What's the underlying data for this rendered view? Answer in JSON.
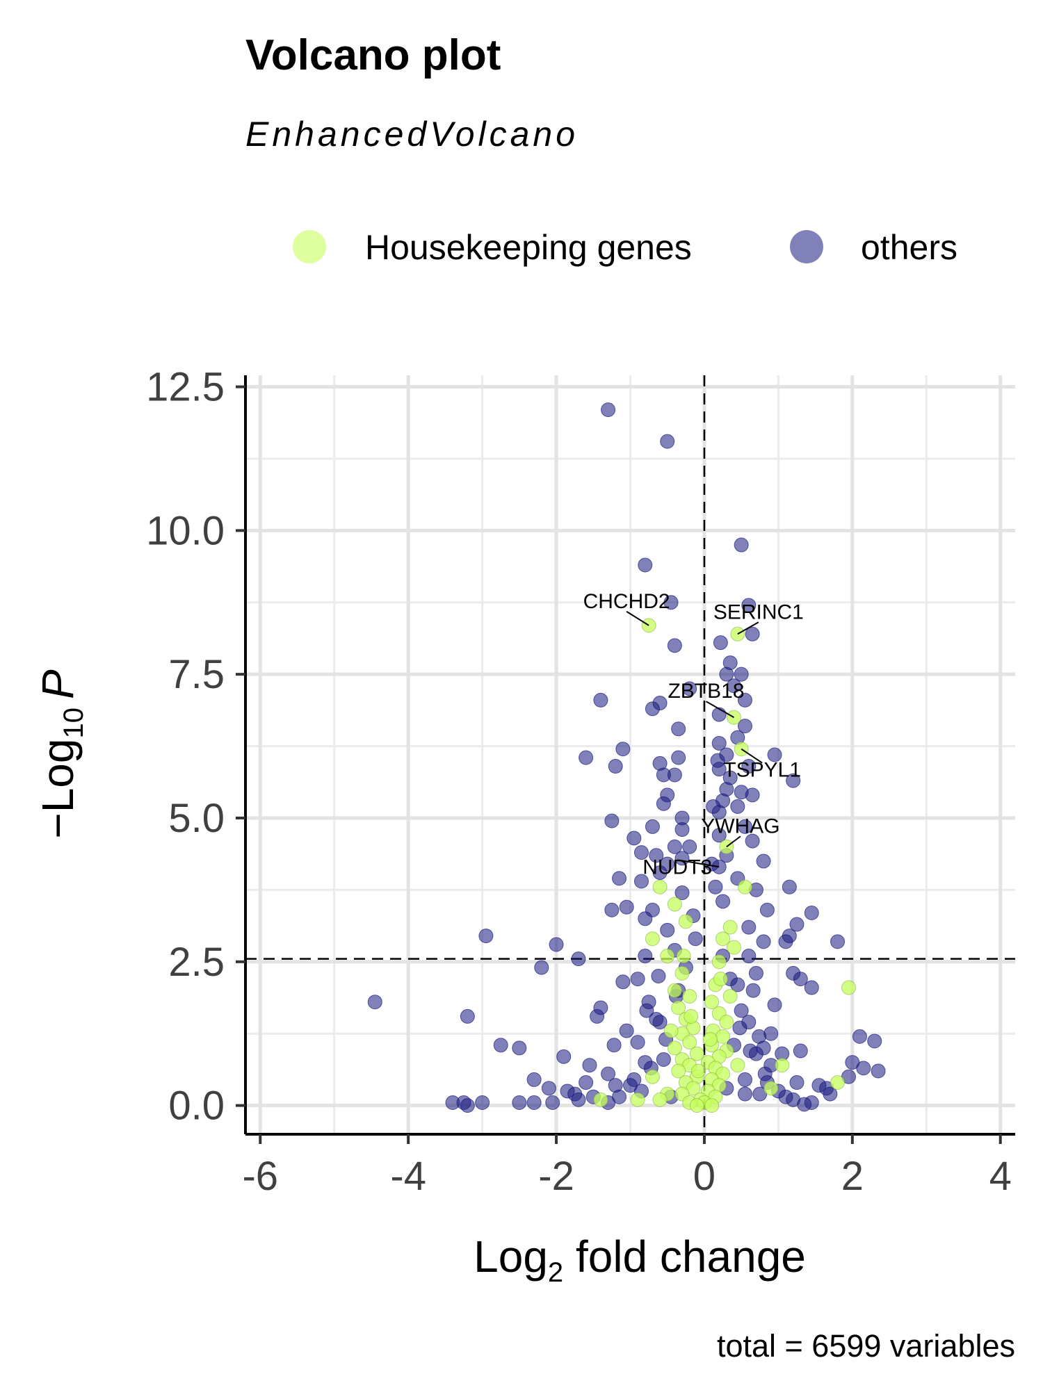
{
  "chart_data": {
    "type": "scatter",
    "title": "Volcano plot",
    "subtitle": "EnhancedVolcano",
    "caption": "total = 6599 variables",
    "xlabel": {
      "base": "Log",
      "sub": "2",
      "rest": " fold change"
    },
    "ylabel": {
      "prefix": "−Log",
      "sub": "10",
      "italic": "P"
    },
    "xlim": [
      -6.2,
      4.2
    ],
    "ylim": [
      -0.5,
      12.7
    ],
    "x_ticks": [
      -6,
      -4,
      -2,
      0,
      2,
      4
    ],
    "x_tick_labels": [
      "-6",
      "-4",
      "-2",
      "0",
      "2",
      "4"
    ],
    "y_ticks": [
      0,
      2.5,
      5,
      7.5,
      10,
      12.5
    ],
    "y_tick_labels": [
      "0.0",
      "2.5",
      "5.0",
      "7.5",
      "10.0",
      "12.5"
    ],
    "grid": true,
    "cutoffs": {
      "x": 0,
      "y": 2.55
    },
    "legend_position": "top",
    "series": [
      {
        "name": "Housekeeping genes",
        "color": "#c6ff5c",
        "points": [
          [
            -0.75,
            8.35
          ],
          [
            0.45,
            8.2
          ],
          [
            0.4,
            6.75
          ],
          [
            0.5,
            6.2
          ],
          [
            0.3,
            4.5
          ],
          [
            -0.6,
            3.8
          ],
          [
            0.55,
            3.8
          ],
          [
            -0.4,
            3.5
          ],
          [
            -0.25,
            3.2
          ],
          [
            0.35,
            3.1
          ],
          [
            0.25,
            2.9
          ],
          [
            -0.7,
            2.9
          ],
          [
            0.4,
            2.75
          ],
          [
            -0.5,
            2.6
          ],
          [
            0.2,
            2.5
          ],
          [
            -0.3,
            2.3
          ],
          [
            -0.4,
            2.0
          ],
          [
            0.15,
            2.1
          ],
          [
            1.95,
            2.05
          ],
          [
            -0.2,
            1.9
          ],
          [
            0.1,
            1.8
          ],
          [
            -0.35,
            1.7
          ],
          [
            0.2,
            1.6
          ],
          [
            -0.25,
            1.5
          ],
          [
            0.3,
            1.45
          ],
          [
            -0.15,
            1.35
          ],
          [
            0.12,
            1.3
          ],
          [
            -0.3,
            1.25
          ],
          [
            0.25,
            1.2
          ],
          [
            -0.2,
            1.1
          ],
          [
            0.1,
            1.05
          ],
          [
            -0.4,
            1.0
          ],
          [
            0.3,
            0.95
          ],
          [
            -0.1,
            0.9
          ],
          [
            0.2,
            0.85
          ],
          [
            -0.3,
            0.8
          ],
          [
            0.05,
            0.75
          ],
          [
            -0.2,
            0.7
          ],
          [
            0.15,
            0.65
          ],
          [
            -0.35,
            0.6
          ],
          [
            0.25,
            0.55
          ],
          [
            -0.1,
            0.5
          ],
          [
            0.1,
            0.45
          ],
          [
            -0.25,
            0.4
          ],
          [
            0.2,
            0.35
          ],
          [
            -0.15,
            0.3
          ],
          [
            0.05,
            0.25
          ],
          [
            -0.3,
            0.2
          ],
          [
            0.15,
            0.15
          ],
          [
            -0.05,
            0.1
          ],
          [
            0.0,
            0.05
          ],
          [
            -0.2,
            0.05
          ],
          [
            0.1,
            0.0
          ],
          [
            -0.1,
            0.0
          ],
          [
            -0.5,
            0.2
          ],
          [
            -0.6,
            0.1
          ],
          [
            -0.9,
            0.1
          ],
          [
            -0.7,
            0.5
          ],
          [
            0.45,
            0.7
          ],
          [
            1.05,
            0.7
          ],
          [
            0.9,
            0.3
          ],
          [
            1.8,
            0.4
          ],
          [
            -1.4,
            0.1
          ],
          [
            -0.45,
            1.3
          ],
          [
            0.35,
            1.9
          ],
          [
            -0.28,
            2.6
          ],
          [
            0.22,
            2.2
          ],
          [
            -0.18,
            1.55
          ],
          [
            0.08,
            1.15
          ],
          [
            -0.08,
            0.6
          ]
        ]
      },
      {
        "name": "others",
        "color": "#1a1a80",
        "points": [
          [
            -1.3,
            12.1
          ],
          [
            -0.5,
            11.55
          ],
          [
            0.5,
            9.75
          ],
          [
            -0.8,
            9.4
          ],
          [
            -0.45,
            8.75
          ],
          [
            0.6,
            8.7
          ],
          [
            0.65,
            8.2
          ],
          [
            0.22,
            8.05
          ],
          [
            -0.4,
            8.0
          ],
          [
            0.35,
            7.7
          ],
          [
            0.3,
            7.5
          ],
          [
            0.5,
            7.5
          ],
          [
            0.4,
            7.3
          ],
          [
            -0.2,
            7.25
          ],
          [
            0.55,
            7.05
          ],
          [
            -1.4,
            7.05
          ],
          [
            -0.6,
            7.0
          ],
          [
            -0.7,
            6.9
          ],
          [
            0.2,
            6.8
          ],
          [
            0.55,
            6.6
          ],
          [
            -0.35,
            6.55
          ],
          [
            0.45,
            6.4
          ],
          [
            0.2,
            6.3
          ],
          [
            -1.1,
            6.2
          ],
          [
            0.3,
            6.1
          ],
          [
            0.95,
            6.1
          ],
          [
            -1.6,
            6.05
          ],
          [
            -0.35,
            6.05
          ],
          [
            -0.6,
            5.95
          ],
          [
            0.6,
            5.9
          ],
          [
            -1.2,
            5.9
          ],
          [
            0.2,
            5.85
          ],
          [
            -0.55,
            5.75
          ],
          [
            -0.4,
            5.75
          ],
          [
            0.35,
            5.7
          ],
          [
            1.2,
            5.65
          ],
          [
            0.3,
            5.5
          ],
          [
            0.5,
            5.45
          ],
          [
            0.65,
            5.4
          ],
          [
            -0.5,
            5.4
          ],
          [
            0.25,
            5.3
          ],
          [
            -0.55,
            5.25
          ],
          [
            0.45,
            5.2
          ],
          [
            0.2,
            5.1
          ],
          [
            -0.3,
            5.0
          ],
          [
            -1.25,
            4.95
          ],
          [
            -0.7,
            4.85
          ],
          [
            0.55,
            4.85
          ],
          [
            -0.3,
            4.8
          ],
          [
            0.2,
            4.7
          ],
          [
            -0.95,
            4.65
          ],
          [
            0.65,
            4.6
          ],
          [
            -0.4,
            4.5
          ],
          [
            -0.85,
            4.4
          ],
          [
            -0.65,
            4.35
          ],
          [
            0.3,
            4.35
          ],
          [
            -0.3,
            4.3
          ],
          [
            0.8,
            4.25
          ],
          [
            -0.5,
            4.2
          ],
          [
            0.2,
            4.15
          ],
          [
            -0.6,
            4.05
          ],
          [
            -1.15,
            3.95
          ],
          [
            -0.85,
            3.9
          ],
          [
            0.45,
            3.95
          ],
          [
            1.15,
            3.8
          ],
          [
            0.7,
            3.75
          ],
          [
            -0.3,
            3.7
          ],
          [
            0.25,
            3.55
          ],
          [
            -1.05,
            3.45
          ],
          [
            -1.25,
            3.4
          ],
          [
            -0.7,
            3.4
          ],
          [
            0.85,
            3.4
          ],
          [
            1.45,
            3.35
          ],
          [
            1.25,
            3.15
          ],
          [
            -0.8,
            3.25
          ],
          [
            0.6,
            3.1
          ],
          [
            -0.5,
            3.05
          ],
          [
            -2.95,
            2.95
          ],
          [
            1.15,
            2.95
          ],
          [
            1.1,
            2.85
          ],
          [
            0.8,
            2.85
          ],
          [
            1.8,
            2.85
          ],
          [
            -2.0,
            2.8
          ],
          [
            -0.4,
            2.7
          ],
          [
            -1.7,
            2.55
          ],
          [
            -0.8,
            2.6
          ],
          [
            0.6,
            2.6
          ],
          [
            -2.2,
            2.4
          ],
          [
            1.2,
            2.3
          ],
          [
            0.7,
            2.3
          ],
          [
            1.3,
            2.2
          ],
          [
            -0.9,
            2.2
          ],
          [
            1.45,
            2.05
          ],
          [
            -1.1,
            2.15
          ],
          [
            -0.35,
            2.0
          ],
          [
            0.45,
            2.1
          ],
          [
            -4.45,
            1.8
          ],
          [
            -1.4,
            1.7
          ],
          [
            -0.75,
            1.8
          ],
          [
            0.95,
            1.75
          ],
          [
            0.5,
            1.65
          ],
          [
            -1.45,
            1.55
          ],
          [
            -3.2,
            1.55
          ],
          [
            -0.6,
            1.45
          ],
          [
            0.6,
            1.45
          ],
          [
            -1.05,
            1.3
          ],
          [
            0.9,
            1.25
          ],
          [
            2.1,
            1.2
          ],
          [
            2.3,
            1.12
          ],
          [
            -0.9,
            1.1
          ],
          [
            0.8,
            1.0
          ],
          [
            -2.75,
            1.05
          ],
          [
            -2.5,
            1.0
          ],
          [
            1.3,
            0.95
          ],
          [
            -1.9,
            0.85
          ],
          [
            0.7,
            0.9
          ],
          [
            2.0,
            0.75
          ],
          [
            -1.55,
            0.7
          ],
          [
            -0.8,
            0.75
          ],
          [
            0.9,
            0.7
          ],
          [
            2.15,
            0.65
          ],
          [
            2.35,
            0.6
          ],
          [
            -2.3,
            0.45
          ],
          [
            1.95,
            0.5
          ],
          [
            -1.3,
            0.55
          ],
          [
            0.55,
            0.45
          ],
          [
            -3.4,
            0.05
          ],
          [
            -3.25,
            0.05
          ],
          [
            -3.2,
            0.0
          ],
          [
            -3.0,
            0.05
          ],
          [
            -2.5,
            0.05
          ],
          [
            -2.3,
            0.05
          ],
          [
            -1.75,
            0.2
          ],
          [
            -2.1,
            0.3
          ],
          [
            1.65,
            0.3
          ],
          [
            -1.2,
            0.35
          ],
          [
            1.25,
            0.4
          ],
          [
            -0.95,
            0.45
          ],
          [
            0.85,
            0.4
          ],
          [
            -1.7,
            0.1
          ],
          [
            -1.5,
            0.15
          ],
          [
            -2.05,
            0.05
          ],
          [
            1.45,
            0.05
          ],
          [
            1.1,
            0.15
          ],
          [
            -0.55,
            0.8
          ],
          [
            -0.65,
            1.5
          ],
          [
            0.4,
            1.05
          ],
          [
            0.3,
            0.3
          ],
          [
            -0.45,
            0.15
          ],
          [
            0.55,
            0.2
          ],
          [
            -0.85,
            0.25
          ],
          [
            0.75,
            0.2
          ],
          [
            -0.25,
            2.4
          ],
          [
            0.25,
            2.6
          ],
          [
            -0.15,
            3.3
          ],
          [
            0.15,
            3.8
          ],
          [
            -0.2,
            4.5
          ],
          [
            0.12,
            5.2
          ],
          [
            0.18,
            6.0
          ],
          [
            0.1,
            4.2
          ],
          [
            -0.12,
            2.9
          ],
          [
            0.35,
            2.2
          ],
          [
            -0.38,
            1.9
          ],
          [
            0.48,
            1.35
          ],
          [
            -0.52,
            1.15
          ],
          [
            0.62,
            0.95
          ],
          [
            -0.72,
            0.65
          ],
          [
            0.82,
            0.55
          ],
          [
            -1.0,
            0.35
          ],
          [
            1.0,
            0.25
          ],
          [
            -1.15,
            0.15
          ],
          [
            1.2,
            0.1
          ],
          [
            -1.3,
            0.05
          ],
          [
            1.35,
            0.02
          ],
          [
            -0.62,
            2.25
          ],
          [
            0.66,
            2.0
          ],
          [
            -0.78,
            1.65
          ],
          [
            0.74,
            1.2
          ],
          [
            -1.22,
            1.05
          ],
          [
            1.05,
            0.9
          ],
          [
            -1.6,
            0.4
          ],
          [
            1.55,
            0.35
          ],
          [
            -1.85,
            0.25
          ],
          [
            1.7,
            0.2
          ]
        ]
      }
    ],
    "labels": [
      {
        "text": "CHCHD2",
        "x": -0.75,
        "y": 8.35
      },
      {
        "text": "SERINC1",
        "x": 0.45,
        "y": 8.2
      },
      {
        "text": "ZBTB18",
        "x": 0.4,
        "y": 6.75
      },
      {
        "text": "TSPYL1",
        "x": 0.5,
        "y": 6.2
      },
      {
        "text": "YWHAG",
        "x": 0.3,
        "y": 4.5
      },
      {
        "text": "NUDT3",
        "x": 0.2,
        "y": 4.15
      }
    ]
  }
}
